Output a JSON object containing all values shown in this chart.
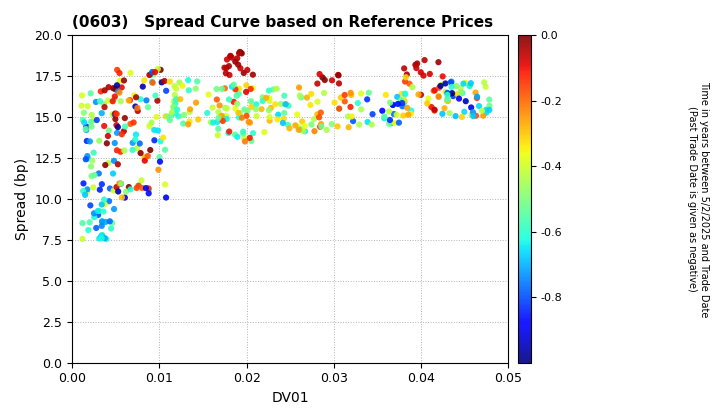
{
  "title": "(0603)   Spread Curve based on Reference Prices",
  "xlabel": "DV01",
  "ylabel": "Spread (bp)",
  "xlim": [
    0.0,
    0.05
  ],
  "ylim": [
    0.0,
    20.0
  ],
  "cbar_label_line1": "Time in years between 5/2/2025 and Trade Date",
  "cbar_label_line2": "(Past Trade Date is given as negative)",
  "cbar_min": -1.0,
  "cbar_max": 0.0,
  "cbar_ticks": [
    0.0,
    -0.2,
    -0.4,
    -0.6,
    -0.8
  ],
  "marker_size": 20,
  "background_color": "#ffffff",
  "seed": 42
}
